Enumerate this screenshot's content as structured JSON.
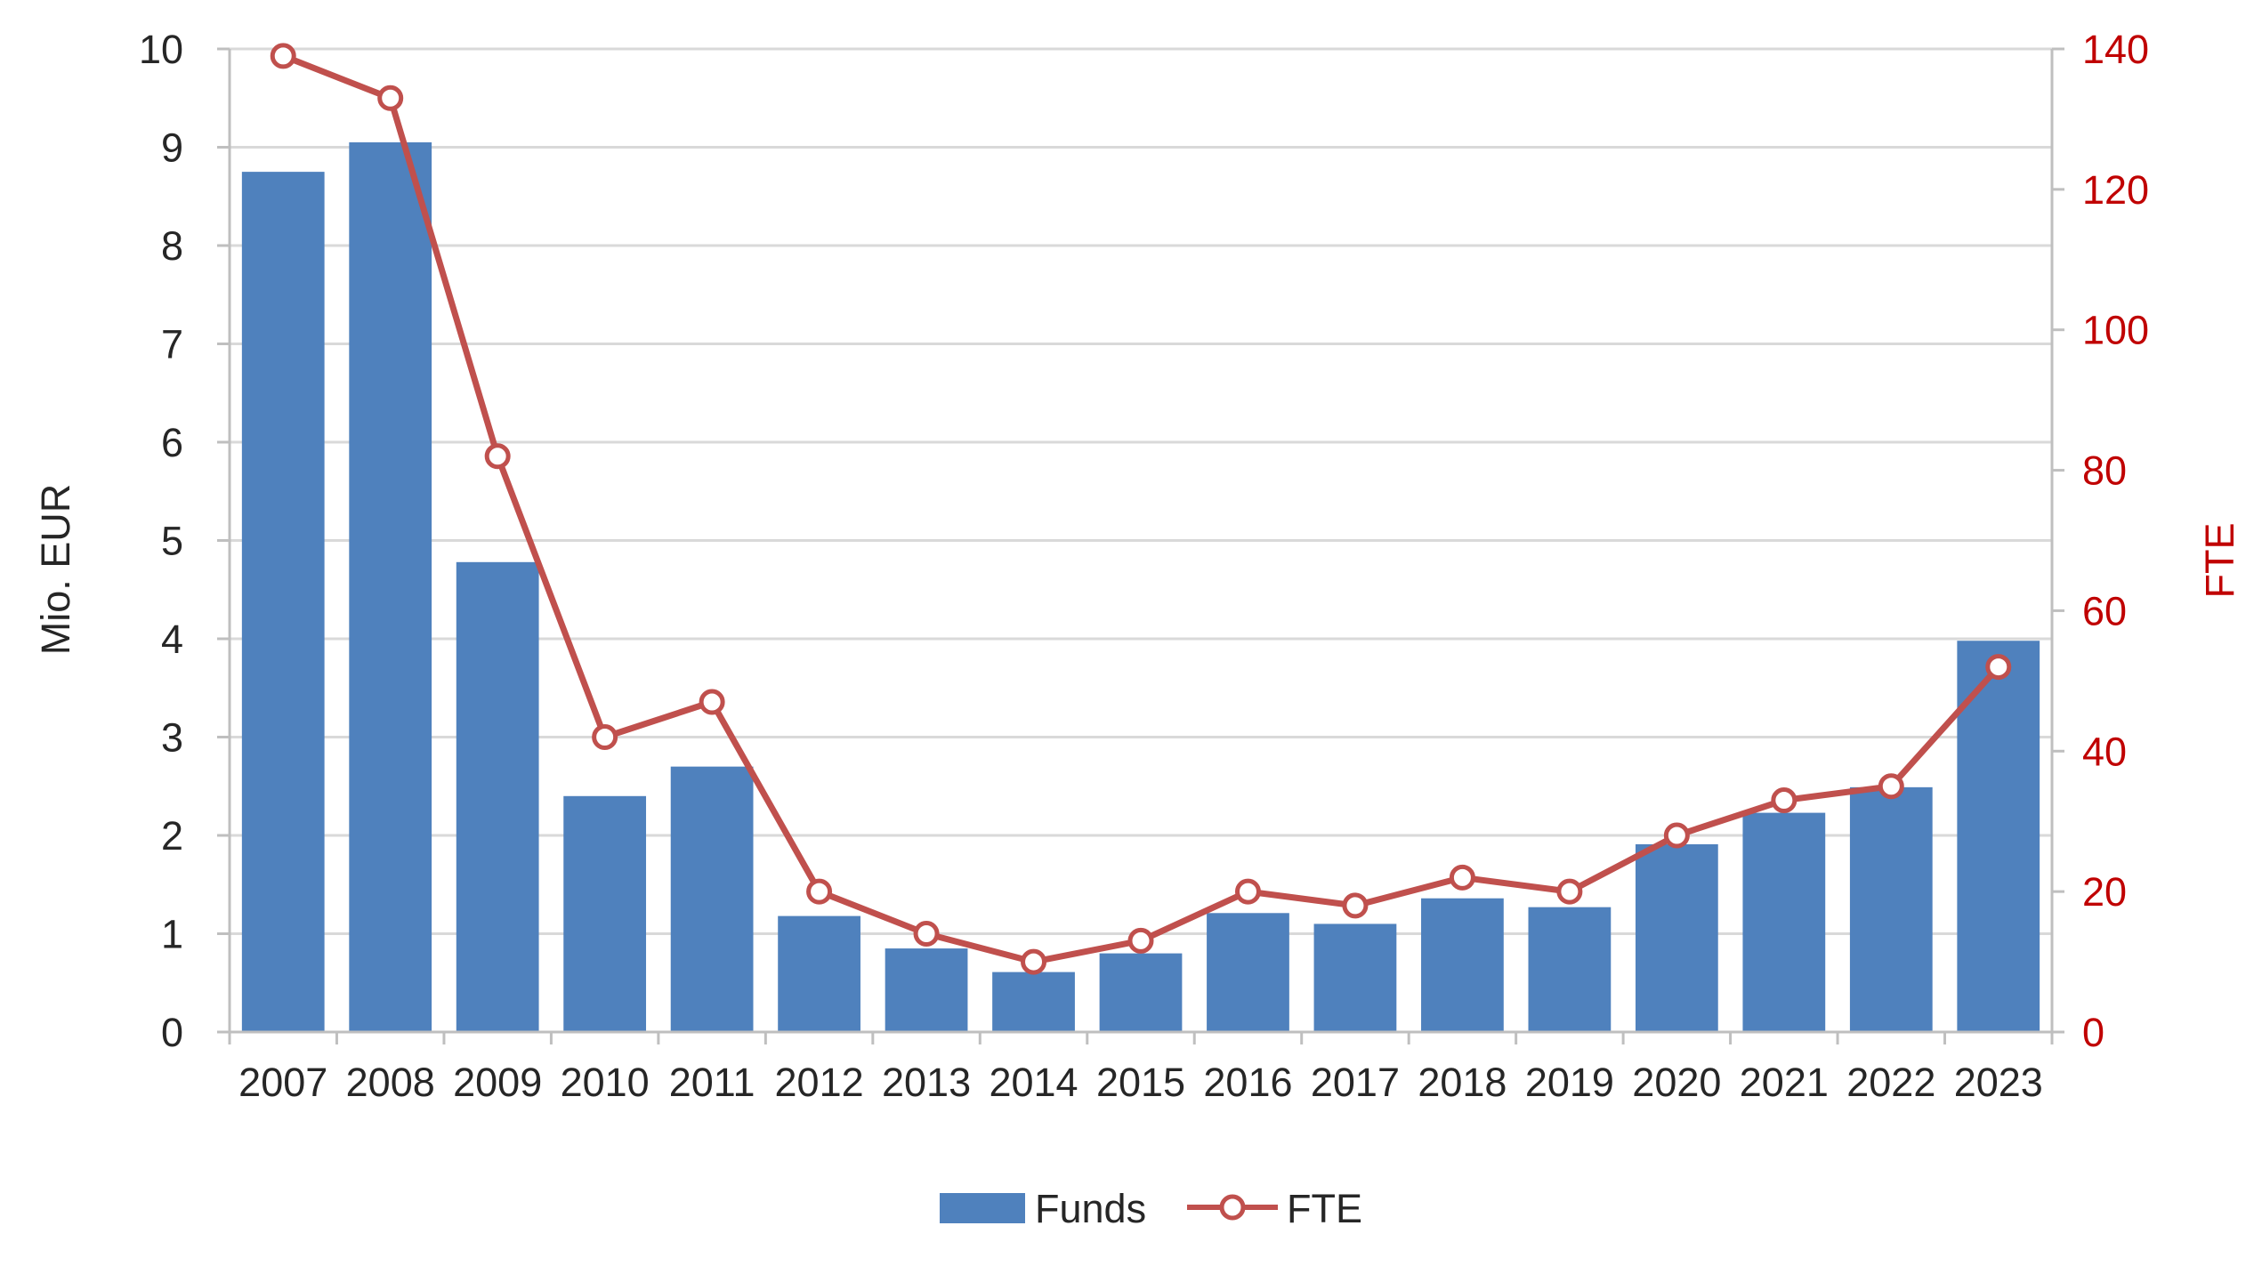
{
  "chart_data": {
    "type": "bar",
    "title": "",
    "categories": [
      "2007",
      "2008",
      "2009",
      "2010",
      "2011",
      "2012",
      "2013",
      "2014",
      "2015",
      "2016",
      "2017",
      "2018",
      "2019",
      "2020",
      "2021",
      "2022",
      "2023"
    ],
    "series": [
      {
        "name": "Funds",
        "type": "bar",
        "axis": "left",
        "color": "#4f81bd",
        "values": [
          8.75,
          9.05,
          4.78,
          2.4,
          2.7,
          1.18,
          0.85,
          0.61,
          0.8,
          1.21,
          1.1,
          1.36,
          1.27,
          1.91,
          2.23,
          2.49,
          3.98
        ]
      },
      {
        "name": "FTE",
        "type": "line",
        "axis": "right",
        "color": "#c0504d",
        "marker": "open-circle",
        "values": [
          139,
          133,
          82,
          42,
          47,
          20,
          14,
          10,
          13,
          20,
          18,
          22,
          20,
          28,
          33,
          35,
          52
        ]
      }
    ],
    "y_left": {
      "label": "Mio. EUR",
      "lim": [
        0,
        10
      ],
      "ticks": [
        "0",
        "1",
        "2",
        "3",
        "4",
        "5",
        "6",
        "7",
        "8",
        "9",
        "10"
      ]
    },
    "y_right": {
      "label": "FTE",
      "lim": [
        0,
        140
      ],
      "ticks": [
        "0",
        "20",
        "40",
        "60",
        "80",
        "100",
        "120",
        "140"
      ],
      "color": "#c00000"
    },
    "grid": true,
    "legend": {
      "position": "bottom-center"
    }
  }
}
